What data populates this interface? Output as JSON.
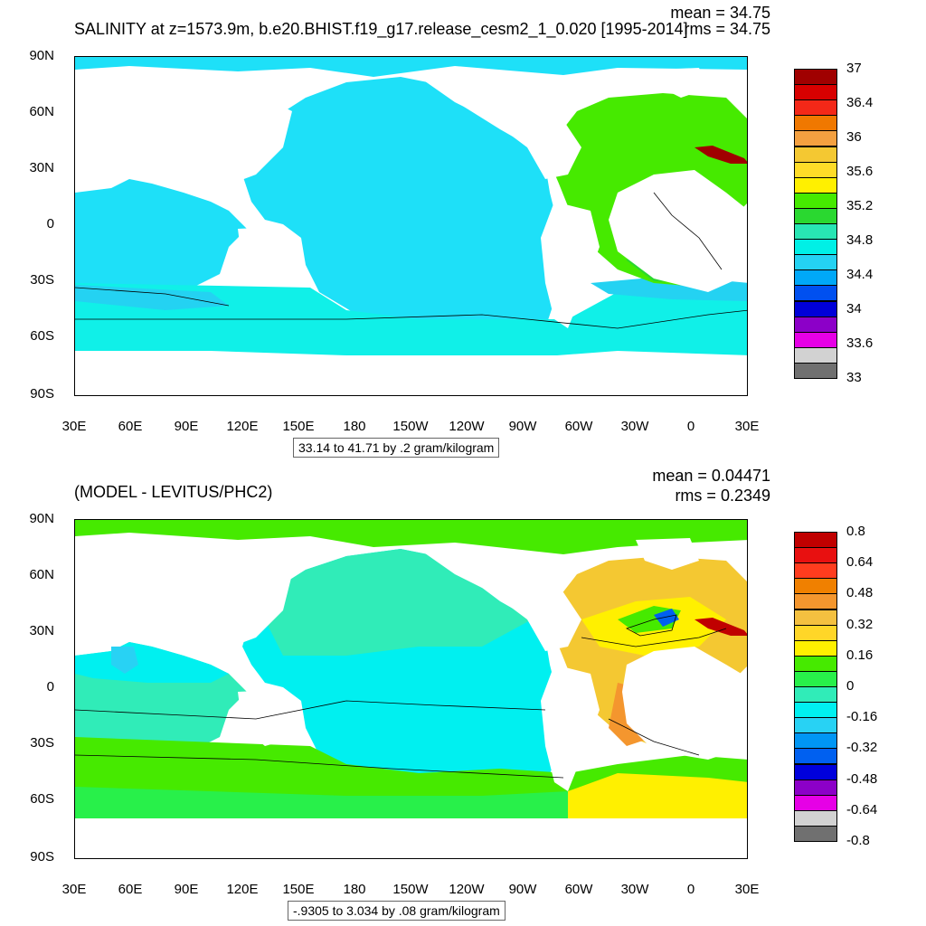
{
  "panels": [
    {
      "id": "top",
      "title": "SALINITY at z=1573.9m, b.e20.BHIST.f19_g17.release_cesm2_1_0.020 [1995-2014]",
      "mean_text": "mean = 34.75",
      "rms_text": "rms = 34.75",
      "range_text": "33.14 to 41.71 by .2 gram/kilogram",
      "colorbar": {
        "colors": [
          "#a00000",
          "#d80000",
          "#f42818",
          "#f07800",
          "#f4a040",
          "#f4c832",
          "#ffdc28",
          "#fff000",
          "#46ea00",
          "#2ad830",
          "#28e6b4",
          "#00f0e6",
          "#24d2f2",
          "#00a8f8",
          "#0050f0",
          "#0000d8",
          "#8c00c8",
          "#e600e6",
          "#d2d2d2",
          "#707070"
        ],
        "labels": [
          "37",
          "36.4",
          "36",
          "35.6",
          "35.2",
          "34.8",
          "34.4",
          "34",
          "33.6",
          "33"
        ]
      }
    },
    {
      "id": "bottom",
      "title": "(MODEL - LEVITUS/PHC2)",
      "mean_text": "mean = 0.04471",
      "rms_text": "rms = 0.2349",
      "range_text": "-.9305 to 3.034 by .08 gram/kilogram",
      "colorbar": {
        "colors": [
          "#c00000",
          "#e81010",
          "#ff3c1e",
          "#f08000",
          "#f4962e",
          "#f4c040",
          "#ffd628",
          "#fff000",
          "#46ea00",
          "#28f04a",
          "#30ecb8",
          "#00f0f0",
          "#28d2f4",
          "#0096f4",
          "#0060f0",
          "#0000dc",
          "#8c00c8",
          "#e600e6",
          "#d2d2d2",
          "#707070"
        ],
        "labels": [
          "0.8",
          "0.64",
          "0.48",
          "0.32",
          "0.16",
          "0",
          "-0.16",
          "-0.32",
          "-0.48",
          "-0.64",
          "-0.8"
        ]
      }
    }
  ],
  "axes": {
    "lat_labels": [
      "90N",
      "60N",
      "30N",
      "0",
      "30S",
      "60S",
      "90S"
    ],
    "lon_labels": [
      "30E",
      "60E",
      "90E",
      "120E",
      "150E",
      "180",
      "150W",
      "120W",
      "90W",
      "60W",
      "30W",
      "0",
      "30E"
    ]
  },
  "colors": {
    "land": "#ffffff",
    "ocean_top_pacific": "#1ee0f8",
    "ocean_top_indian": "#10f0e8",
    "ocean_top_atlantic": "#46ea00",
    "ocean_bottom_pacific": "#00f0f0",
    "ocean_bottom_indian": "#30ecb8",
    "ocean_bottom_southern": "#46ea00",
    "ocean_bottom_atlantic": "#f4c832",
    "contour": "#000000"
  }
}
